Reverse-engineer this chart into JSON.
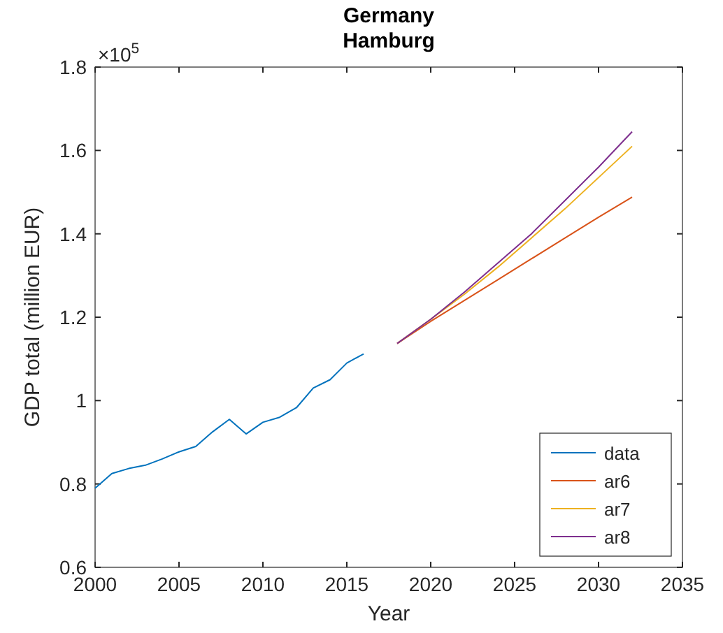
{
  "chart_data": {
    "type": "line",
    "title": "Germany\nHamburg",
    "xlabel": "Year",
    "ylabel": "GDP total (million EUR)",
    "annotations": [
      "×10$^{5}$"
    ],
    "xlim": [
      2000,
      2035
    ],
    "xticks": [
      2000,
      2005,
      2010,
      2015,
      2020,
      2025,
      2030,
      2035
    ],
    "ylim": [
      0.6,
      1.8
    ],
    "yticks": [
      0.6,
      0.8,
      1,
      1.2,
      1.4,
      1.6,
      1.8
    ],
    "legend": "bottom right",
    "grid": false,
    "series": [
      {
        "name": "data",
        "color": "#0072bd",
        "x": [
          2000,
          2001,
          2002,
          2003,
          2004,
          2005,
          2006,
          2007,
          2008,
          2009,
          2010,
          2011,
          2012,
          2013,
          2014,
          2015,
          2016
        ],
        "values": [
          0.79,
          0.825,
          0.837,
          0.845,
          0.86,
          0.877,
          0.89,
          0.925,
          0.955,
          0.92,
          0.948,
          0.96,
          0.983,
          1.03,
          1.05,
          1.09,
          1.112
        ]
      },
      {
        "name": "ar6",
        "color": "#d95319",
        "x": [
          2018,
          2020,
          2022,
          2024,
          2026,
          2028,
          2030,
          2032
        ],
        "values": [
          1.137,
          1.19,
          1.24,
          1.29,
          1.34,
          1.39,
          1.44,
          1.488
        ]
      },
      {
        "name": "ar7",
        "color": "#edb120",
        "x": [
          2018,
          2020,
          2022,
          2024,
          2026,
          2028,
          2030,
          2032
        ],
        "values": [
          1.137,
          1.195,
          1.255,
          1.32,
          1.39,
          1.46,
          1.535,
          1.61
        ]
      },
      {
        "name": "ar8",
        "color": "#7e2f8e",
        "x": [
          2018,
          2020,
          2022,
          2024,
          2026,
          2028,
          2030,
          2032
        ],
        "values": [
          1.137,
          1.195,
          1.26,
          1.33,
          1.4,
          1.48,
          1.56,
          1.645
        ]
      }
    ]
  }
}
